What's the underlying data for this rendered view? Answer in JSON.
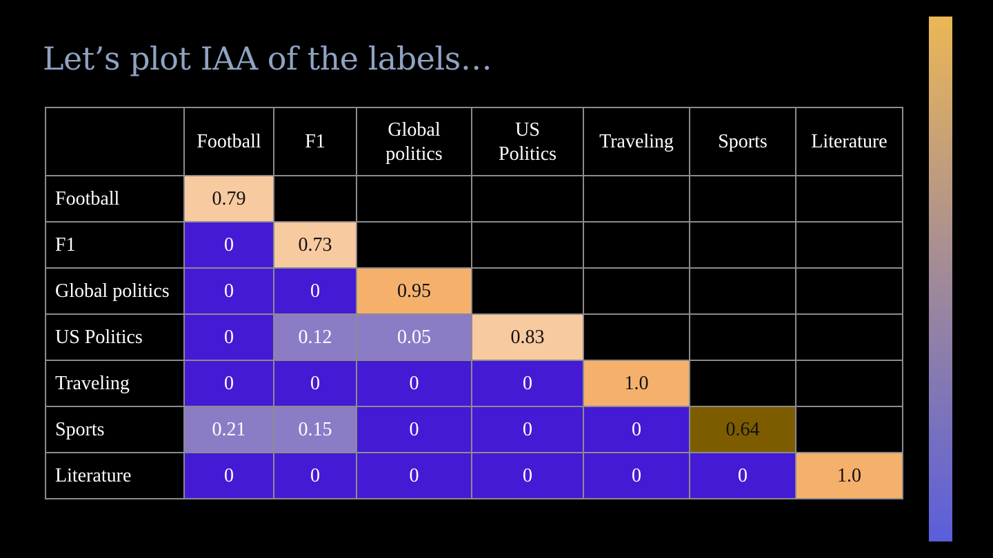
{
  "slide": {
    "title": "Let’s plot IAA of the labels…"
  },
  "chart_data": {
    "type": "heatmap",
    "title": "",
    "columns": [
      "Football",
      "F1",
      "Global politics",
      "US Politics",
      "Traveling",
      "Sports",
      "Literature"
    ],
    "rows": [
      "Football",
      "F1",
      "Global politics",
      "US Politics",
      "Traveling",
      "Sports",
      "Literature"
    ],
    "values": [
      [
        "0.79",
        null,
        null,
        null,
        null,
        null,
        null
      ],
      [
        "0",
        "0.73",
        null,
        null,
        null,
        null,
        null
      ],
      [
        "0",
        "0",
        "0.95",
        null,
        null,
        null,
        null
      ],
      [
        "0",
        "0.12",
        "0.05",
        "0.83",
        null,
        null,
        null
      ],
      [
        "0",
        "0",
        "0",
        "0",
        "1.0",
        null,
        null
      ],
      [
        "0.21",
        "0.15",
        "0",
        "0",
        "0",
        "0.64",
        null
      ],
      [
        "0",
        "0",
        "0",
        "0",
        "0",
        "0",
        "1.0"
      ]
    ],
    "cell_colors": [
      [
        "#f8caa0",
        null,
        null,
        null,
        null,
        null,
        null
      ],
      [
        "#451ad4",
        "#f8caa0",
        null,
        null,
        null,
        null,
        null
      ],
      [
        "#451ad4",
        "#451ad4",
        "#f5b16c",
        null,
        null,
        null,
        null
      ],
      [
        "#451ad4",
        "#8c7cc6",
        "#8c7cc6",
        "#f8caa0",
        null,
        null,
        null
      ],
      [
        "#451ad4",
        "#451ad4",
        "#451ad4",
        "#451ad4",
        "#f5b16c",
        null,
        null
      ],
      [
        "#8c7cc6",
        "#8c7cc6",
        "#451ad4",
        "#451ad4",
        "#451ad4",
        "#7d5c00",
        null
      ],
      [
        "#451ad4",
        "#451ad4",
        "#451ad4",
        "#451ad4",
        "#451ad4",
        "#451ad4",
        "#f5b16c"
      ]
    ],
    "colorbar": {
      "top_color": "#ecb756",
      "mid_color": "#a08a99",
      "bottom_color": "#5a5edb"
    }
  }
}
